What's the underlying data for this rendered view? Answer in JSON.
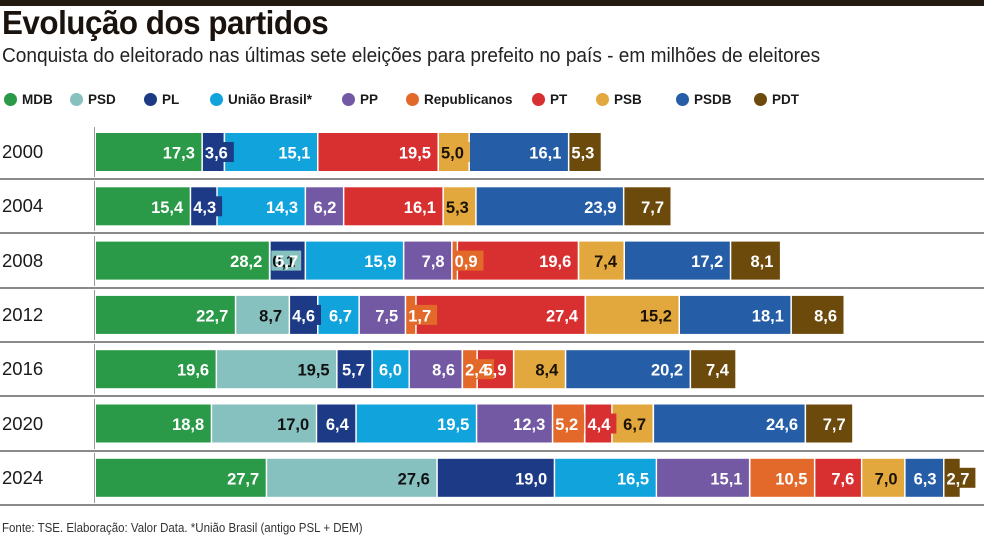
{
  "header": {
    "title": "Evolução dos partidos",
    "subtitle": "Conquista do eleitorado nas últimas sete eleições para prefeito no país - em milhões de eleitores"
  },
  "footer": {
    "source": "Fonte: TSE. Elaboração: Valor Data. *União Brasil (antigo PSL + DEM)"
  },
  "chart_data": {
    "type": "bar",
    "orientation": "horizontal",
    "stacked": true,
    "title": "Evolução dos partidos",
    "subtitle": "Conquista do eleitorado nas últimas sete eleições para prefeito no país - em milhões de eleitores",
    "units": "milhões de eleitores",
    "legend_position": "top",
    "grid": false,
    "categories": [
      "2000",
      "2004",
      "2008",
      "2012",
      "2016",
      "2020",
      "2024"
    ],
    "series": [
      {
        "name": "MDB",
        "color": "#2a9a48",
        "label_color": "#ffffff",
        "values": [
          17.3,
          15.4,
          28.2,
          22.7,
          19.6,
          18.8,
          27.7
        ]
      },
      {
        "name": "PSD",
        "color": "#86c0bf",
        "label_color": "#111111",
        "values": [
          null,
          null,
          0.1,
          8.7,
          19.5,
          17.0,
          27.6
        ]
      },
      {
        "name": "PL",
        "color": "#1c3a86",
        "label_color": "#ffffff",
        "values": [
          3.6,
          4.3,
          5.7,
          4.6,
          5.7,
          6.4,
          19.0
        ]
      },
      {
        "name": "União Brasil*",
        "color": "#11a3dc",
        "label_color": "#ffffff",
        "values": [
          15.1,
          14.3,
          15.9,
          6.7,
          6.0,
          19.5,
          16.5
        ]
      },
      {
        "name": "PP",
        "color": "#7359a3",
        "label_color": "#ffffff",
        "values": [
          null,
          6.2,
          7.8,
          7.5,
          8.6,
          12.3,
          15.1
        ]
      },
      {
        "name": "Republicanos",
        "color": "#e3692a",
        "label_color": "#ffffff",
        "values": [
          null,
          null,
          0.9,
          1.7,
          2.4,
          5.2,
          10.5
        ]
      },
      {
        "name": "PT",
        "color": "#d83030",
        "label_color": "#ffffff",
        "values": [
          19.5,
          16.1,
          19.6,
          27.4,
          5.9,
          4.4,
          7.6
        ]
      },
      {
        "name": "PSB",
        "color": "#e2a83e",
        "label_color": "#1a1207",
        "values": [
          5.0,
          5.3,
          7.4,
          15.2,
          8.4,
          6.7,
          7.0
        ]
      },
      {
        "name": "PSDB",
        "color": "#255ea6",
        "label_color": "#ffffff",
        "values": [
          16.1,
          23.9,
          17.2,
          18.1,
          20.2,
          24.6,
          6.3
        ]
      },
      {
        "name": "PDT",
        "color": "#6b4a0c",
        "label_color": "#ffffff",
        "values": [
          5.3,
          7.7,
          8.1,
          8.6,
          7.4,
          7.7,
          2.7
        ]
      }
    ],
    "xlim": [
      0,
      142
    ]
  }
}
